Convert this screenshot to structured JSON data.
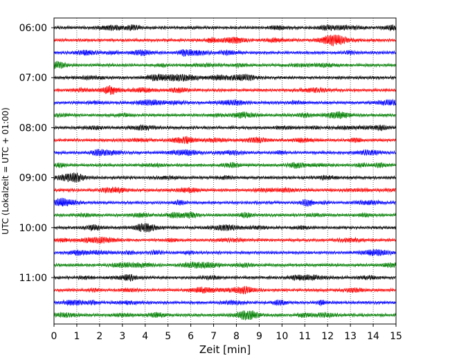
{
  "chart_data": {
    "type": "line",
    "title": "",
    "xlabel": "Zeit  [min]",
    "ylabel": "UTC (Lokalzeit = UTC + 01:00)",
    "xlim": [
      0,
      15
    ],
    "x_ticks": [
      "0",
      "1",
      "2",
      "3",
      "4",
      "5",
      "6",
      "7",
      "8",
      "9",
      "10",
      "11",
      "12",
      "13",
      "14",
      "15"
    ],
    "y_tick_labels": [
      "06:00",
      "07:00",
      "08:00",
      "09:00",
      "10:00",
      "11:00"
    ],
    "grid": "vertical dotted lines at each minute",
    "trace_colors": [
      "#000000",
      "#ff0000",
      "#0000ff",
      "#007f00"
    ],
    "traces": [
      {
        "start": "06:00",
        "color": "#000000"
      },
      {
        "start": "06:15",
        "color": "#ff0000"
      },
      {
        "start": "06:30",
        "color": "#0000ff"
      },
      {
        "start": "06:45",
        "color": "#007f00"
      },
      {
        "start": "07:00",
        "color": "#000000"
      },
      {
        "start": "07:15",
        "color": "#ff0000"
      },
      {
        "start": "07:30",
        "color": "#0000ff"
      },
      {
        "start": "07:45",
        "color": "#007f00"
      },
      {
        "start": "08:00",
        "color": "#000000"
      },
      {
        "start": "08:15",
        "color": "#ff0000"
      },
      {
        "start": "08:30",
        "color": "#0000ff"
      },
      {
        "start": "08:45",
        "color": "#007f00"
      },
      {
        "start": "09:00",
        "color": "#000000"
      },
      {
        "start": "09:15",
        "color": "#ff0000"
      },
      {
        "start": "09:30",
        "color": "#0000ff"
      },
      {
        "start": "09:45",
        "color": "#007f00"
      },
      {
        "start": "10:00",
        "color": "#000000"
      },
      {
        "start": "10:15",
        "color": "#ff0000"
      },
      {
        "start": "10:30",
        "color": "#0000ff"
      },
      {
        "start": "10:45",
        "color": "#007f00"
      },
      {
        "start": "11:00",
        "color": "#000000"
      },
      {
        "start": "11:15",
        "color": "#ff0000"
      },
      {
        "start": "11:30",
        "color": "#0000ff"
      },
      {
        "start": "11:45",
        "color": "#007f00"
      }
    ]
  }
}
